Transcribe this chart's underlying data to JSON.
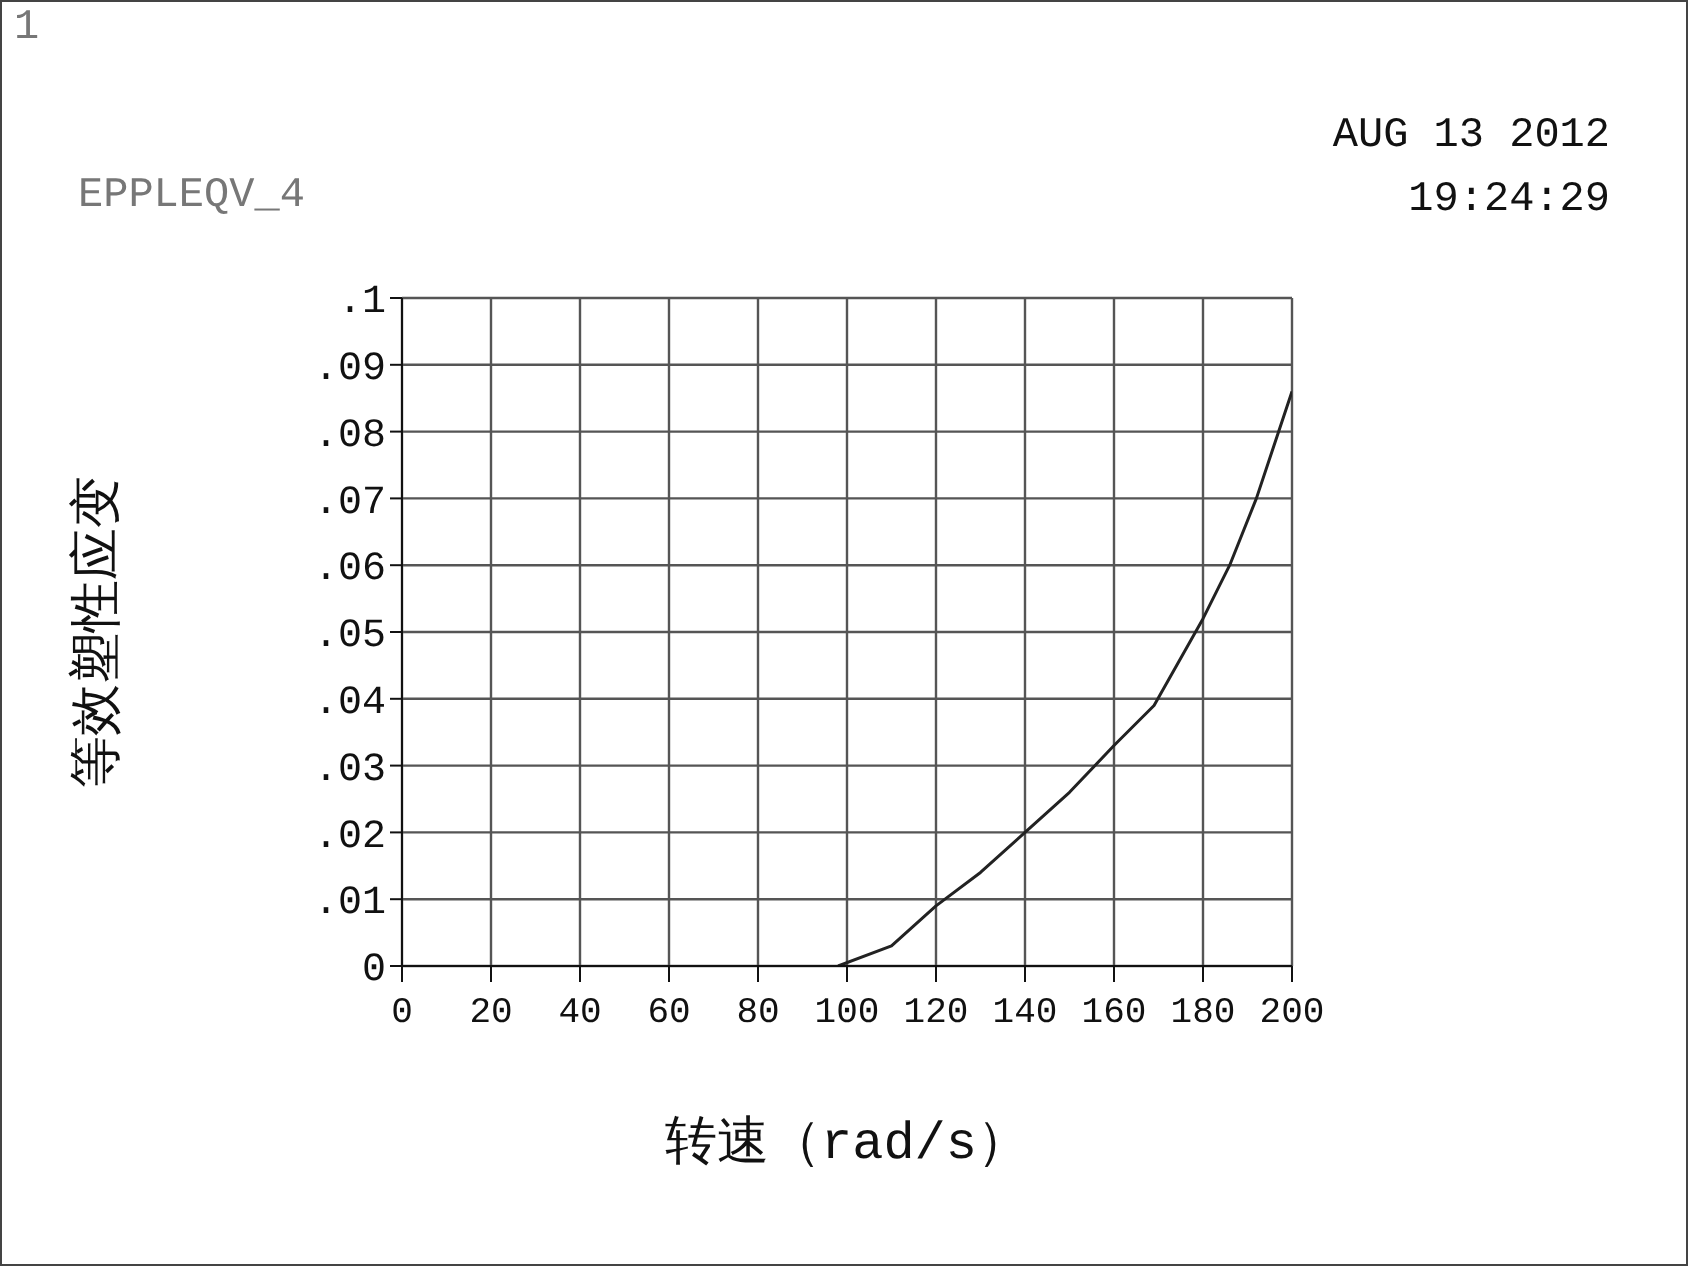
{
  "chart_data": {
    "type": "line",
    "xlabel": "转速（rad/s）",
    "ylabel": "等效塑性应变",
    "annotations": [
      "1",
      "EPPLEQV_4",
      "AUG 13 2012",
      "19:24:29"
    ],
    "x": [
      98,
      110,
      120,
      130,
      140,
      150,
      160,
      169,
      180,
      186,
      192,
      200
    ],
    "series": [
      {
        "color": "#222222",
        "values": [
          0,
          0.003,
          0.009,
          0.014,
          0.02,
          0.026,
          0.033,
          0.039,
          0.052,
          0.06,
          0.07,
          0.086
        ]
      }
    ],
    "xlim": [
      0,
      200
    ],
    "xticks": [
      0,
      20,
      40,
      60,
      80,
      100,
      120,
      140,
      160,
      180,
      200
    ],
    "ylim": [
      0,
      0.1
    ],
    "yticks": [
      {
        "value": 0,
        "label": "0"
      },
      {
        "value": 0.01,
        "label": ".01"
      },
      {
        "value": 0.02,
        "label": ".02"
      },
      {
        "value": 0.03,
        "label": ".03"
      },
      {
        "value": 0.04,
        "label": ".04"
      },
      {
        "value": 0.05,
        "label": ".05"
      },
      {
        "value": 0.06,
        "label": ".06"
      },
      {
        "value": 0.07,
        "label": ".07"
      },
      {
        "value": 0.08,
        "label": ".08"
      },
      {
        "value": 0.09,
        "label": ".09"
      },
      {
        "value": 0.1,
        "label": ".1"
      }
    ],
    "grid": true,
    "legend": false,
    "marker": "none",
    "line_style": "solid"
  }
}
